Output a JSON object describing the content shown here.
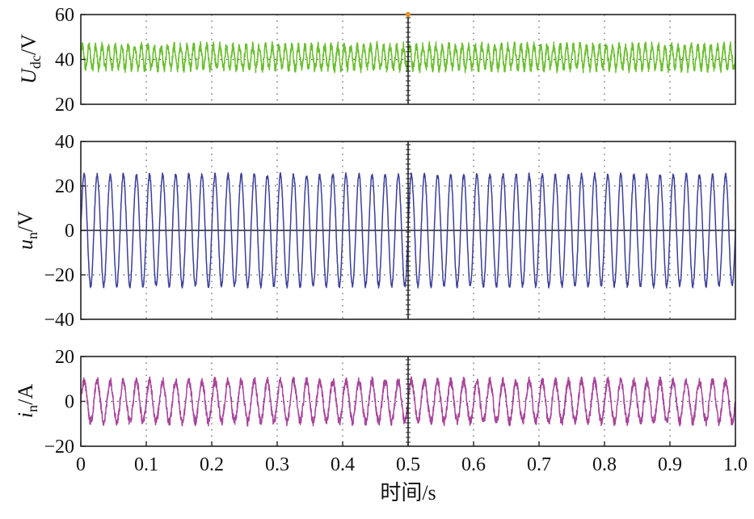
{
  "chart_data": [
    {
      "type": "line",
      "panel": "Udc",
      "ylabel": {
        "main": "U",
        "sub": "dc",
        "unit": "/V"
      },
      "ylim": [
        20,
        60
      ],
      "yticks": [
        "20",
        "40",
        "60"
      ],
      "grid": true,
      "color": "#6abf2e",
      "series": [
        {
          "signal": "ripple",
          "mean": 41,
          "ripple_amplitude": 5,
          "ripple_cycles": 100,
          "noise_amplitude": 2,
          "x": [
            0,
            1.0
          ]
        }
      ]
    },
    {
      "type": "line",
      "panel": "un",
      "ylabel": {
        "main": "u",
        "sub": "n",
        "unit": "/V"
      },
      "ylim": [
        -40,
        40
      ],
      "yticks": [
        "40",
        "20",
        "0",
        "−20",
        "−40"
      ],
      "grid": true,
      "zero_line": true,
      "color": "#3b3f9a",
      "series": [
        {
          "signal": "sine",
          "amplitude": 25,
          "cycles": 50,
          "noise_amplitude": 1,
          "x": [
            0,
            1.0
          ]
        }
      ]
    },
    {
      "type": "line",
      "panel": "in",
      "ylabel": {
        "main": "i",
        "sub": "n",
        "unit": "/A"
      },
      "ylim": [
        -20,
        20
      ],
      "yticks": [
        "20",
        "0",
        "−20"
      ],
      "grid": true,
      "color": "#a8459c",
      "series": [
        {
          "signal": "sine",
          "amplitude": 9,
          "cycles": 50,
          "noise_amplitude": 2,
          "x": [
            0,
            1.0
          ]
        }
      ]
    }
  ],
  "x_axis": {
    "xlim": [
      0,
      1.0
    ],
    "ticks": [
      "0",
      "0.1",
      "0.2",
      "0.3",
      "0.4",
      "0.5",
      "0.6",
      "0.7",
      "0.8",
      "0.9",
      "1.0"
    ],
    "xlabel": "时间/s"
  },
  "cursor": {
    "x": 0.5,
    "line_color": "#222222",
    "marker_color": "#e8902a"
  }
}
